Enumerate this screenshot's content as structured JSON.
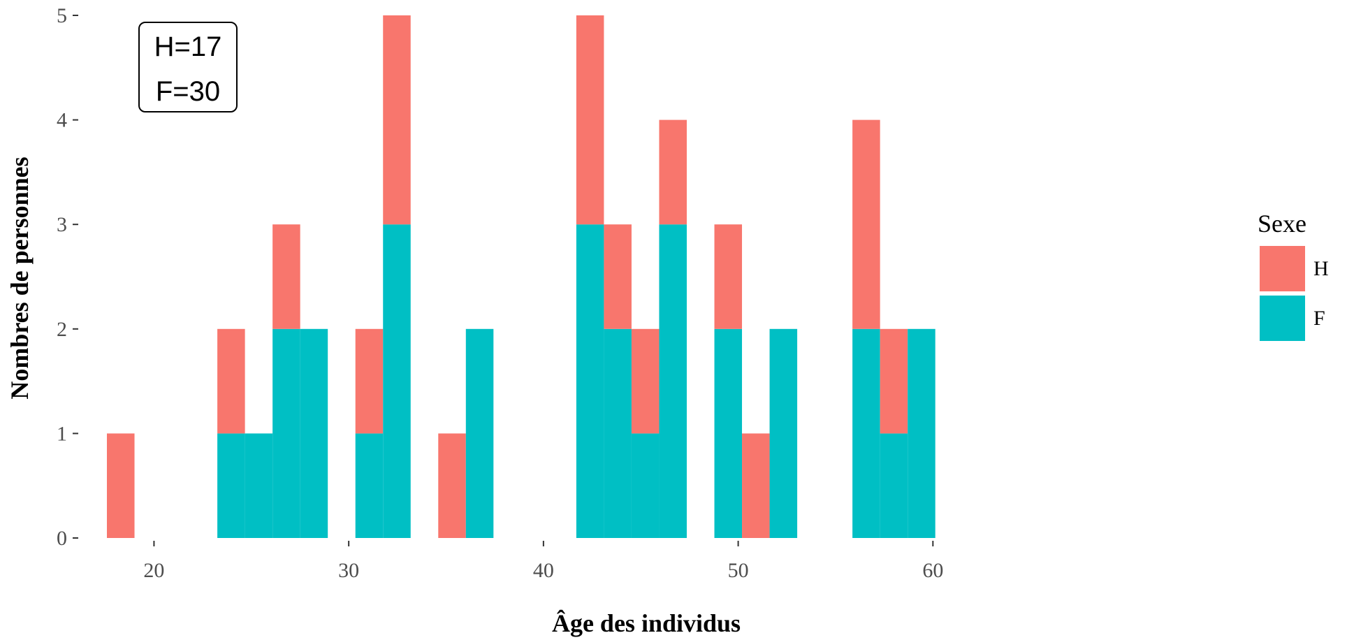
{
  "chart_data": {
    "type": "bar",
    "subtype": "stacked-histogram",
    "title": "",
    "xlabel": "Âge des individus",
    "ylabel": "Nombres de personnes",
    "xlim": [
      16.0,
      66.0
    ],
    "ylim": [
      0,
      5
    ],
    "x_ticks": [
      20,
      30,
      40,
      50,
      60
    ],
    "y_ticks": [
      0,
      1,
      2,
      3,
      4,
      5
    ],
    "grid": false,
    "bin_width": 1.418,
    "bin_starts": [
      17.581,
      23.253,
      24.671,
      26.089,
      27.507,
      30.343,
      31.761,
      34.597,
      36.015,
      41.687,
      43.105,
      44.523,
      45.941,
      48.777,
      50.195,
      51.613,
      55.867,
      57.285,
      58.703
    ],
    "series": [
      {
        "name": "F",
        "color": "#00BFC4",
        "values": [
          0,
          1,
          1,
          2,
          2,
          1,
          3,
          0,
          2,
          3,
          2,
          1,
          3,
          2,
          0,
          2,
          2,
          1,
          2
        ]
      },
      {
        "name": "H",
        "color": "#F8766D",
        "values": [
          1,
          1,
          0,
          1,
          0,
          1,
          2,
          1,
          0,
          2,
          1,
          1,
          1,
          1,
          1,
          0,
          2,
          1,
          0
        ]
      }
    ],
    "legend": {
      "title": "Sexe",
      "position": "right",
      "entries": [
        {
          "label": "H",
          "color": "#F8766D"
        },
        {
          "label": "F",
          "color": "#00BFC4"
        }
      ]
    },
    "annotations": {
      "lines": [
        "H=17",
        "F=30"
      ],
      "position": "top-left"
    }
  }
}
